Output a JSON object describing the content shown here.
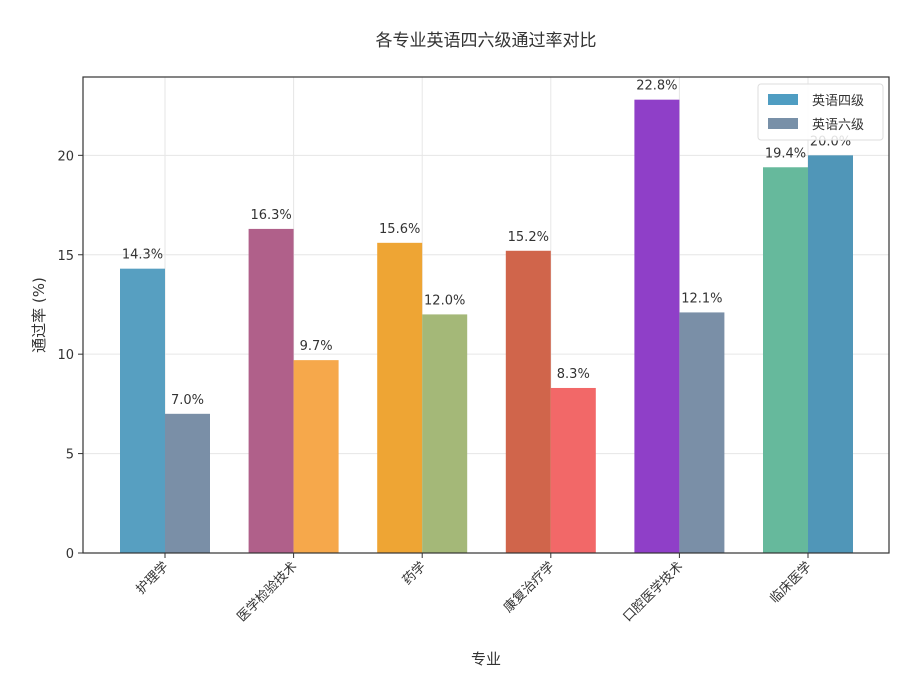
{
  "chart_data": {
    "type": "bar",
    "title": "各专业英语四六级通过率对比",
    "xlabel": "专业",
    "ylabel": "通过率 (%)",
    "categories": [
      "护理学",
      "医学检验技术",
      "药学",
      "康复治疗学",
      "口腔医学技术",
      "临床医学"
    ],
    "series": [
      {
        "name": "英语四级",
        "values": [
          14.3,
          16.3,
          15.6,
          15.2,
          22.8,
          19.4
        ],
        "colors": [
          "#579fc1",
          "#b0608a",
          "#eea534",
          "#d0654b",
          "#8f3fc8",
          "#66b99c"
        ],
        "legend_color": "#4f9dc2"
      },
      {
        "name": "英语六级",
        "values": [
          7.0,
          9.7,
          12.0,
          8.3,
          12.1,
          20.0
        ],
        "colors": [
          "#7a8fa7",
          "#f6a84b",
          "#a4b878",
          "#f26868",
          "#7a8fa7",
          "#5096b8"
        ],
        "legend_color": "#7890a8"
      }
    ],
    "data_labels": [
      [
        "14.3%",
        "16.3%",
        "15.6%",
        "15.2%",
        "22.8%",
        "19.4%"
      ],
      [
        "7.0%",
        "9.7%",
        "12.0%",
        "8.3%",
        "12.1%",
        "20.0%"
      ]
    ],
    "yticks": [
      0,
      5,
      10,
      15,
      20
    ],
    "ytick_labels": [
      "0",
      "5",
      "10",
      "15",
      "20"
    ],
    "ylim": [
      0,
      23.94
    ],
    "grid": true,
    "legend_position": "top-right"
  }
}
